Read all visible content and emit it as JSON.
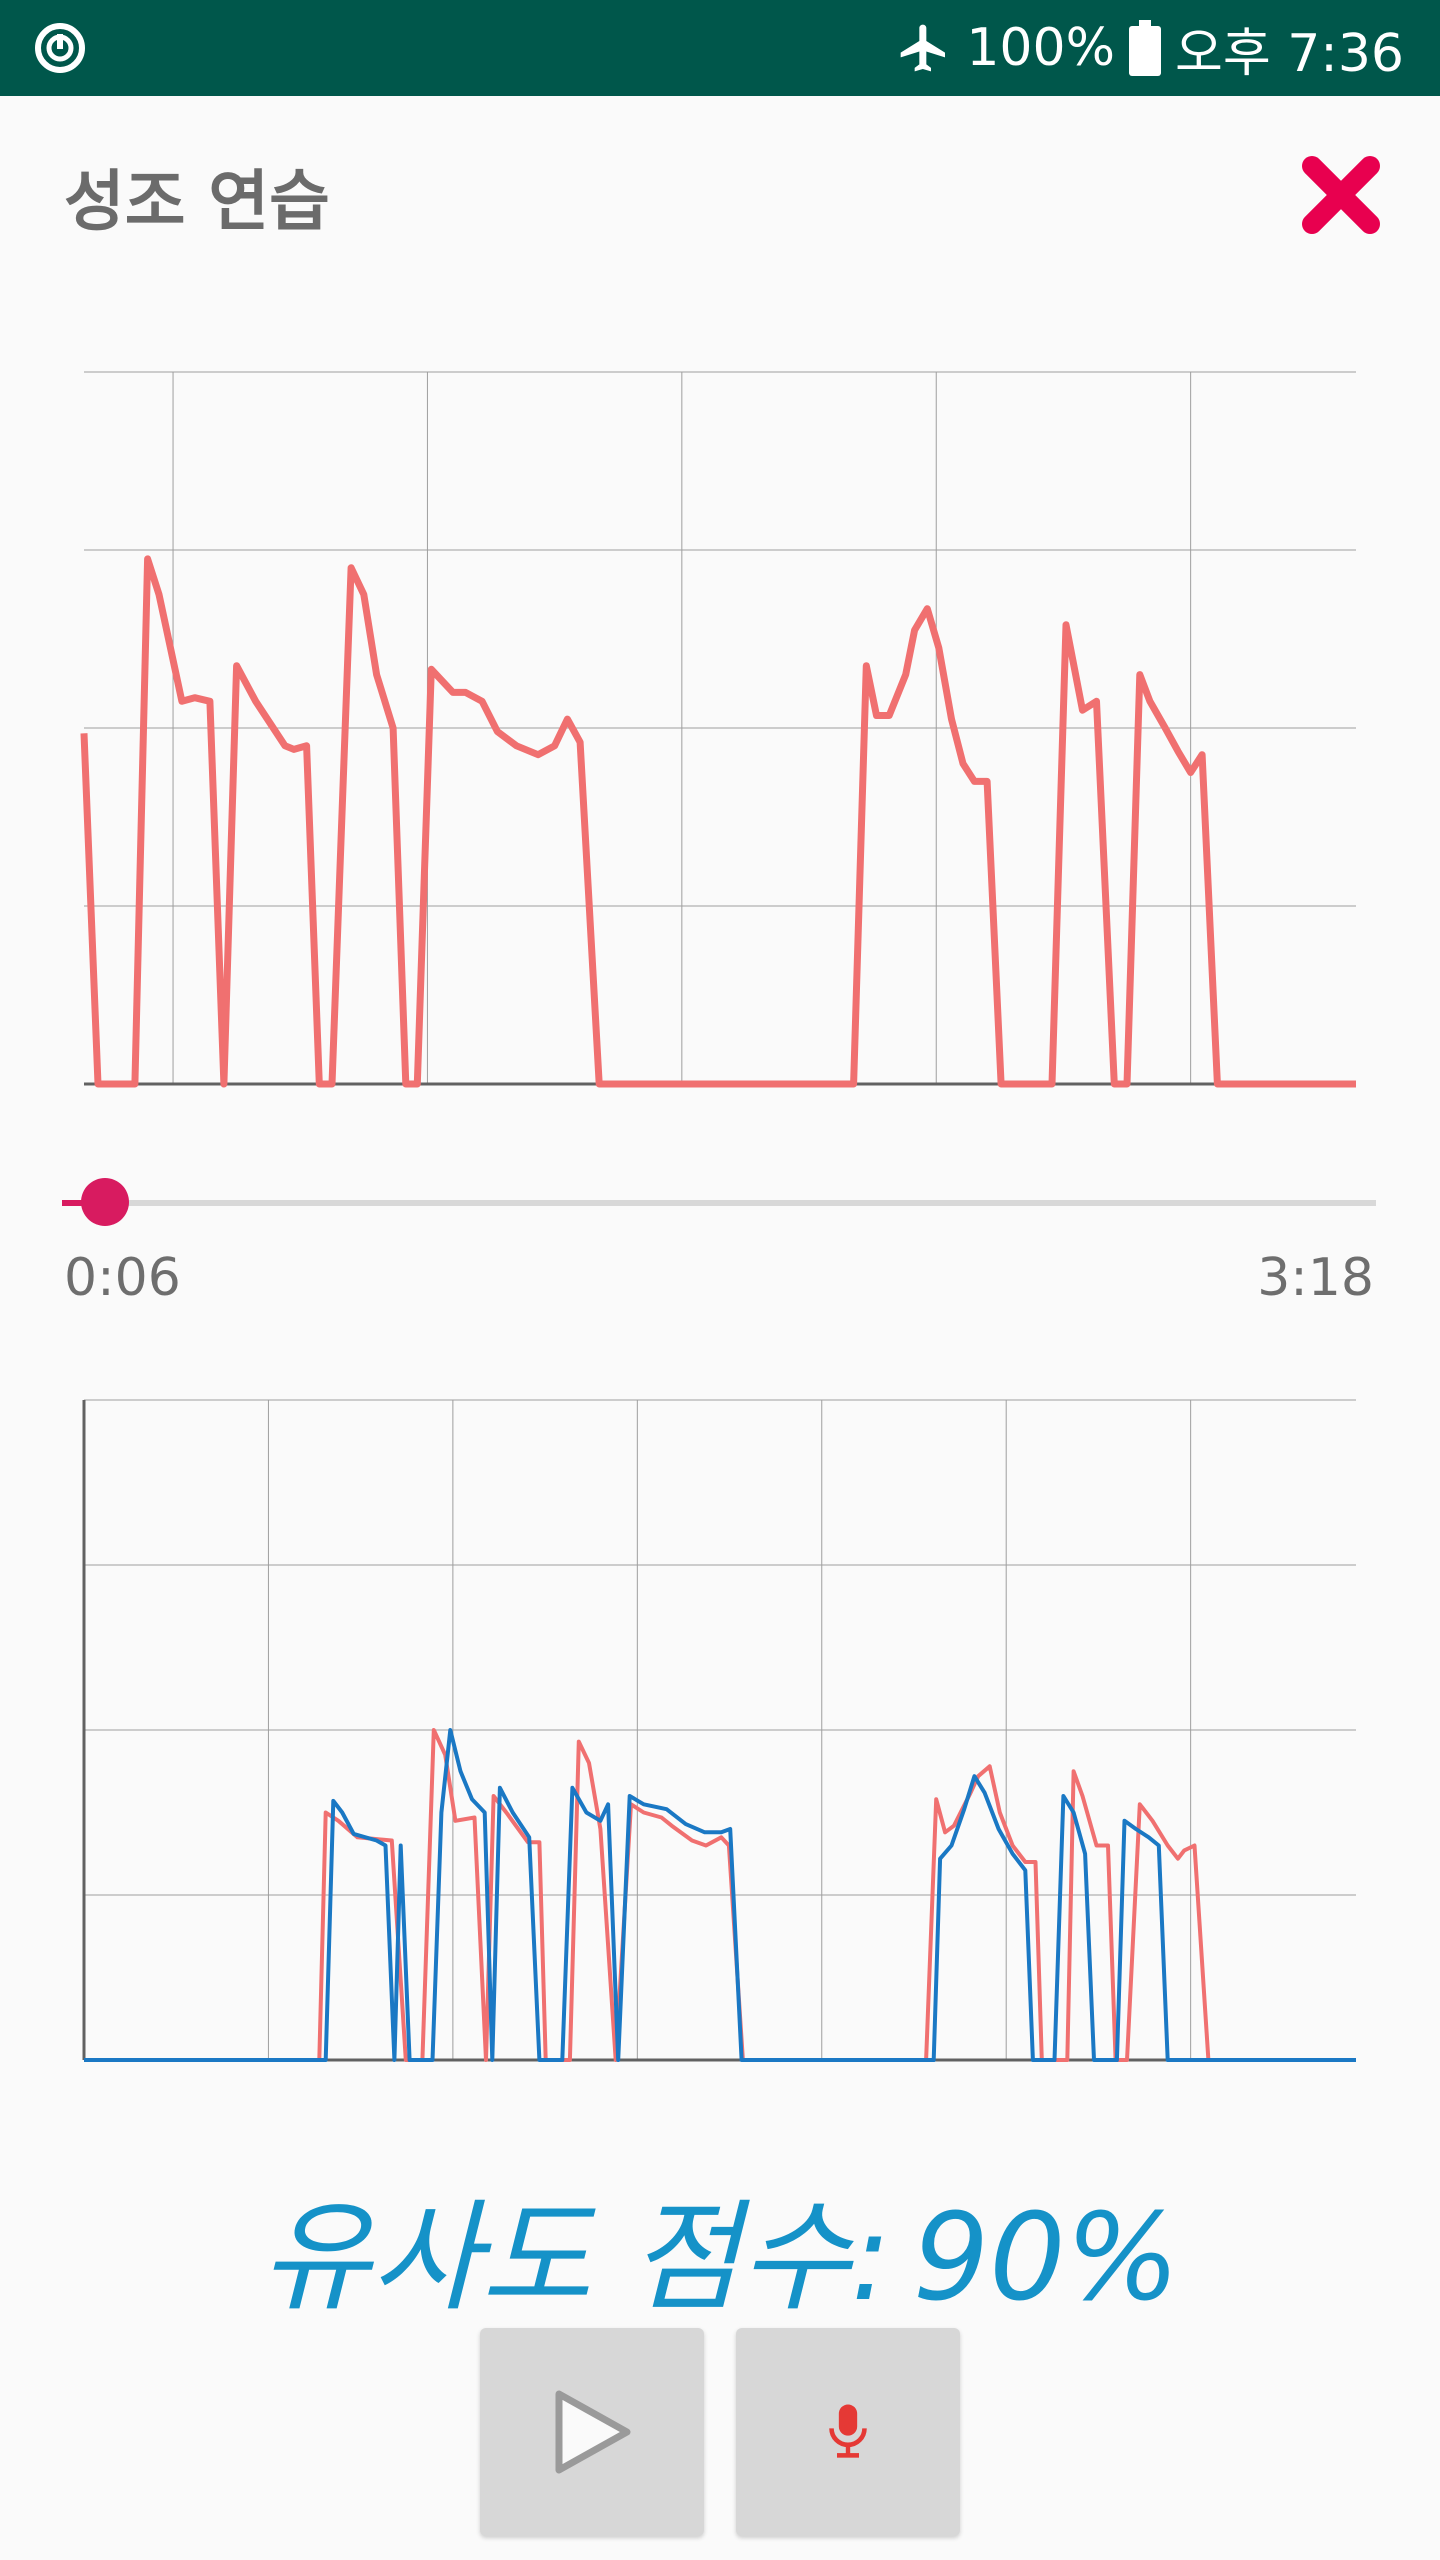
{
  "status_bar": {
    "battery": "100%",
    "clock": "오후 7:36",
    "icons": [
      "power-ring-icon",
      "airplane-icon",
      "battery-icon"
    ]
  },
  "header": {
    "title": "성조 연습",
    "close_icon": "close-icon"
  },
  "player": {
    "current_time": "0:06",
    "total_time": "3:18",
    "progress_fraction": 0.033
  },
  "score": {
    "label": "유사도 점수:",
    "value": "90%"
  },
  "controls": {
    "play_icon": "play-icon",
    "record_icon": "microphone-icon"
  },
  "colors": {
    "status_bar": "#00574b",
    "reference_pitch": "#f07070",
    "user_pitch": "#1a78c4",
    "accent": "#d81b60",
    "score_text": "#1592c8",
    "close": "#e8004f"
  },
  "chart_data": [
    {
      "type": "line",
      "title": "",
      "xlim": [
        0,
        100
      ],
      "ylim": [
        0,
        4
      ],
      "grid": true,
      "series": [
        {
          "color": "#f07070",
          "points": [
            [
              0,
              1.97
            ],
            [
              1.1,
              0
            ],
            [
              4,
              0
            ],
            [
              5,
              2.95
            ],
            [
              5.9,
              2.75
            ],
            [
              7.7,
              2.15
            ],
            [
              8.7,
              2.17
            ],
            [
              9.9,
              2.15
            ],
            [
              11,
              0
            ],
            [
              12,
              2.35
            ],
            [
              13.5,
              2.15
            ],
            [
              15.8,
              1.9
            ],
            [
              16.5,
              1.88
            ],
            [
              17.5,
              1.9
            ],
            [
              18.5,
              0
            ],
            [
              19.5,
              0
            ],
            [
              21,
              2.9
            ],
            [
              22,
              2.75
            ],
            [
              23,
              2.3
            ],
            [
              24.3,
              2.0
            ],
            [
              25.3,
              0
            ],
            [
              26.2,
              0
            ],
            [
              27.3,
              2.33
            ],
            [
              29,
              2.2
            ],
            [
              30,
              2.2
            ],
            [
              31.3,
              2.15
            ],
            [
              32.5,
              1.98
            ],
            [
              34,
              1.9
            ],
            [
              35.7,
              1.85
            ],
            [
              37,
              1.9
            ],
            [
              38,
              2.05
            ],
            [
              39,
              1.92
            ],
            [
              40.5,
              0
            ],
            [
              60.5,
              0
            ],
            [
              61.5,
              2.35
            ],
            [
              62.3,
              2.07
            ],
            [
              63.3,
              2.07
            ],
            [
              64.6,
              2.3
            ],
            [
              65.3,
              2.55
            ],
            [
              66.3,
              2.67
            ],
            [
              67.2,
              2.45
            ],
            [
              68.2,
              2.05
            ],
            [
              69.1,
              1.8
            ],
            [
              70,
              1.7
            ],
            [
              71,
              1.7
            ],
            [
              72.1,
              0
            ],
            [
              76.1,
              0
            ],
            [
              77.2,
              2.58
            ],
            [
              78.5,
              2.1
            ],
            [
              79.6,
              2.15
            ],
            [
              81,
              0
            ],
            [
              82,
              0
            ],
            [
              83,
              2.3
            ],
            [
              83.8,
              2.15
            ],
            [
              85,
              2.0
            ],
            [
              86,
              1.87
            ],
            [
              87,
              1.75
            ],
            [
              87.9,
              1.85
            ],
            [
              89.1,
              0
            ],
            [
              100,
              0
            ]
          ]
        }
      ]
    },
    {
      "type": "line",
      "title": "",
      "xlim": [
        0,
        100
      ],
      "ylim": [
        0,
        4
      ],
      "grid": true,
      "series": [
        {
          "color": "#f07070",
          "points": [
            [
              0,
              0
            ],
            [
              18.5,
              0
            ],
            [
              19,
              1.5
            ],
            [
              20,
              1.45
            ],
            [
              21.5,
              1.35
            ],
            [
              24.2,
              1.33
            ],
            [
              25.3,
              0
            ],
            [
              26.6,
              0
            ],
            [
              27.5,
              2.0
            ],
            [
              28.4,
              1.85
            ],
            [
              29.2,
              1.45
            ],
            [
              30.7,
              1.47
            ],
            [
              31.6,
              0
            ],
            [
              32.2,
              1.6
            ],
            [
              33.2,
              1.5
            ],
            [
              34.9,
              1.32
            ],
            [
              35.8,
              1.32
            ],
            [
              36.3,
              0
            ],
            [
              38.2,
              0
            ],
            [
              38.9,
              1.93
            ],
            [
              39.7,
              1.8
            ],
            [
              40.6,
              1.4
            ],
            [
              41.8,
              0
            ],
            [
              43,
              1.55
            ],
            [
              44,
              1.5
            ],
            [
              45.4,
              1.47
            ],
            [
              46.2,
              1.42
            ],
            [
              47.8,
              1.33
            ],
            [
              48.9,
              1.3
            ],
            [
              50.1,
              1.35
            ],
            [
              50.7,
              1.3
            ],
            [
              51.8,
              0
            ],
            [
              66.2,
              0
            ],
            [
              67,
              1.58
            ],
            [
              67.7,
              1.38
            ],
            [
              68.4,
              1.42
            ],
            [
              69.7,
              1.62
            ],
            [
              70.3,
              1.72
            ],
            [
              71.2,
              1.78
            ],
            [
              72,
              1.5
            ],
            [
              73,
              1.3
            ],
            [
              74,
              1.2
            ],
            [
              74.8,
              1.2
            ],
            [
              75.3,
              0
            ],
            [
              77.3,
              0
            ],
            [
              77.8,
              1.75
            ],
            [
              78.5,
              1.6
            ],
            [
              79.6,
              1.3
            ],
            [
              80.5,
              1.3
            ],
            [
              81.1,
              0
            ],
            [
              82,
              0
            ],
            [
              83,
              1.55
            ],
            [
              84,
              1.45
            ],
            [
              85.2,
              1.3
            ],
            [
              86,
              1.22
            ],
            [
              86.5,
              1.27
            ],
            [
              87.3,
              1.3
            ],
            [
              88.4,
              0
            ],
            [
              100,
              0
            ]
          ]
        },
        {
          "color": "#1a78c4",
          "points": [
            [
              0,
              0
            ],
            [
              19,
              0
            ],
            [
              19.6,
              1.57
            ],
            [
              20.3,
              1.5
            ],
            [
              21.2,
              1.37
            ],
            [
              23,
              1.33
            ],
            [
              23.7,
              1.3
            ],
            [
              24.4,
              0
            ],
            [
              24.9,
              1.3
            ],
            [
              25.6,
              0
            ],
            [
              27.4,
              0
            ],
            [
              28.1,
              1.5
            ],
            [
              28.8,
              2.0
            ],
            [
              29.6,
              1.75
            ],
            [
              30.5,
              1.58
            ],
            [
              31.5,
              1.5
            ],
            [
              32.1,
              0
            ],
            [
              32.7,
              1.65
            ],
            [
              33.7,
              1.5
            ],
            [
              35,
              1.35
            ],
            [
              35.8,
              0
            ],
            [
              37.6,
              0
            ],
            [
              38.4,
              1.65
            ],
            [
              39.5,
              1.5
            ],
            [
              40.6,
              1.45
            ],
            [
              41.2,
              1.55
            ],
            [
              42,
              0
            ],
            [
              42.9,
              1.6
            ],
            [
              44,
              1.55
            ],
            [
              45.8,
              1.52
            ],
            [
              47.3,
              1.43
            ],
            [
              48.8,
              1.38
            ],
            [
              50.1,
              1.38
            ],
            [
              50.8,
              1.4
            ],
            [
              51.7,
              0
            ],
            [
              66.8,
              0
            ],
            [
              67.3,
              1.22
            ],
            [
              68.2,
              1.3
            ],
            [
              69.2,
              1.52
            ],
            [
              70,
              1.72
            ],
            [
              70.8,
              1.62
            ],
            [
              71.9,
              1.4
            ],
            [
              73,
              1.25
            ],
            [
              74,
              1.15
            ],
            [
              74.6,
              0
            ],
            [
              76.3,
              0
            ],
            [
              77,
              1.6
            ],
            [
              77.8,
              1.5
            ],
            [
              78.7,
              1.25
            ],
            [
              79.4,
              0
            ],
            [
              81.2,
              0
            ],
            [
              81.8,
              1.45
            ],
            [
              82.7,
              1.4
            ],
            [
              83.7,
              1.35
            ],
            [
              84.5,
              1.3
            ],
            [
              85.2,
              0
            ],
            [
              100,
              0
            ]
          ]
        }
      ]
    }
  ]
}
